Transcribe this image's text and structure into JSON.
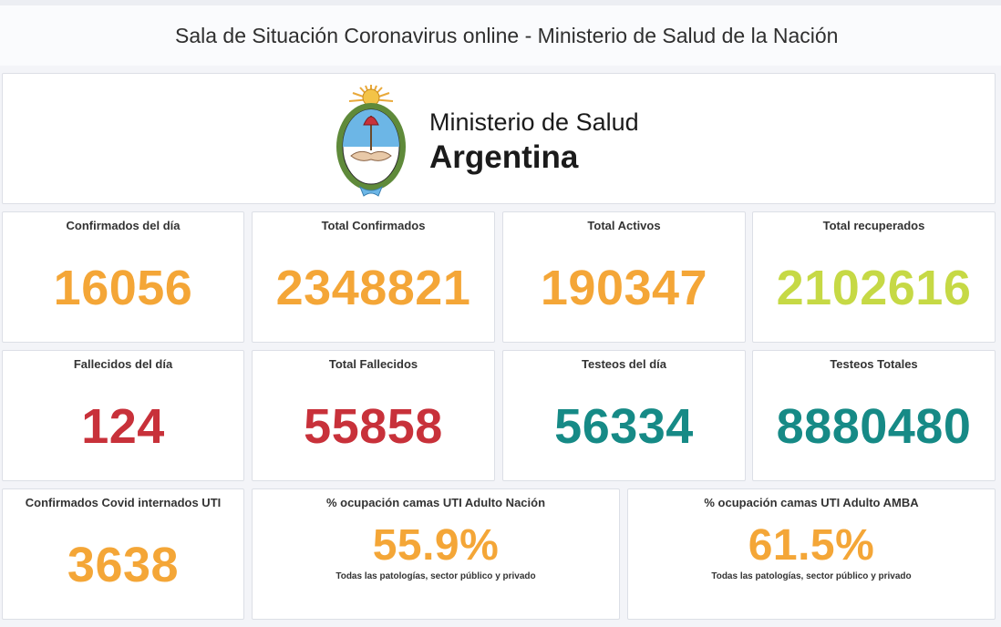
{
  "title": "Sala de Situación Coronavirus online - Ministerio de Salud de la Nación",
  "logo": {
    "line1": "Ministerio de Salud",
    "line2": "Argentina",
    "icon": "escudo-nacional-icon"
  },
  "colors": {
    "orange": "#f4a637",
    "green": "#c6d945",
    "red": "#c8313a",
    "teal": "#168a86"
  },
  "row1": [
    {
      "label": "Confirmados del día",
      "value": "16056"
    },
    {
      "label": "Total Confirmados",
      "value": "2348821"
    },
    {
      "label": "Total Activos",
      "value": "190347"
    },
    {
      "label": "Total recuperados",
      "value": "2102616"
    }
  ],
  "row2": [
    {
      "label": "Fallecidos del día",
      "value": "124"
    },
    {
      "label": "Total Fallecidos",
      "value": "55858"
    },
    {
      "label": "Testeos del día",
      "value": "56334"
    },
    {
      "label": "Testeos Totales",
      "value": "8880480"
    }
  ],
  "row3": [
    {
      "label": "Confirmados Covid internados UTI",
      "value": "3638"
    },
    {
      "label": "% ocupación camas UTI Adulto Nación",
      "value": "55.9%",
      "note": "Todas las patologías, sector público y privado"
    },
    {
      "label": "% ocupación camas UTI Adulto AMBA",
      "value": "61.5%",
      "note": "Todas las patologías, sector público y privado"
    }
  ]
}
